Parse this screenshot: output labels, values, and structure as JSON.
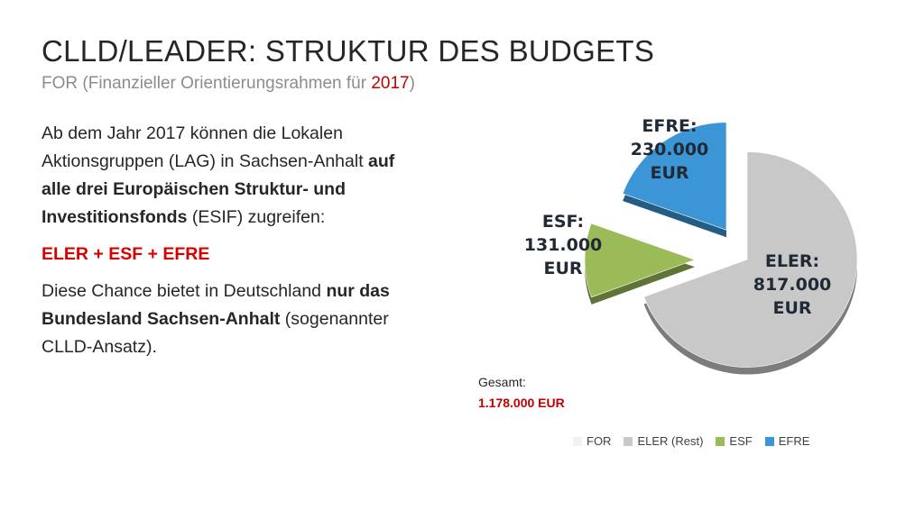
{
  "slide": {
    "title": "CLLD/LEADER: STRUKTUR DES BUDGETS",
    "subtitle_prefix": "FOR (Finanzieller Orientierungsrahmen für ",
    "subtitle_year": "2017",
    "subtitle_suffix": ")"
  },
  "text": {
    "p1_a": "Ab dem Jahr 2017 können die Lokalen Aktionsgruppen (LAG) in Sachsen-Anhalt ",
    "p1_b": "auf alle drei Europäischen Struktur- und Investitionsfonds",
    "p1_c": " (ESIF) zugreifen:",
    "p2": "ELER + ESF + EFRE",
    "p3_a": "Diese Chance bietet in Deutschland ",
    "p3_b": "nur das Bundesland Sachsen-Anhalt",
    "p3_c": " (sogenannter CLLD-Ansatz)."
  },
  "total": {
    "label": "Gesamt:",
    "value": "1.178.000 EUR"
  },
  "chart_data": {
    "type": "pie",
    "unit": "EUR",
    "slices": [
      {
        "name": "FOR",
        "value": 0,
        "color": "#f2f2f2"
      },
      {
        "name": "ELER (Rest)",
        "value": 817000,
        "color": "#c8c8c8",
        "label_l1": "ELER:",
        "label_l2": "817.000",
        "label_l3": "EUR"
      },
      {
        "name": "ESF",
        "value": 131000,
        "color": "#9bbb59",
        "label_l1": "ESF:",
        "label_l2": "131.000",
        "label_l3": "EUR"
      },
      {
        "name": "EFRE",
        "value": 230000,
        "color": "#3c95d4",
        "label_l1": "EFRE:",
        "label_l2": "230.000",
        "label_l3": "EUR"
      }
    ],
    "legend": [
      "FOR",
      "ELER (Rest)",
      "ESF",
      "EFRE"
    ],
    "legend_position": "bottom"
  }
}
